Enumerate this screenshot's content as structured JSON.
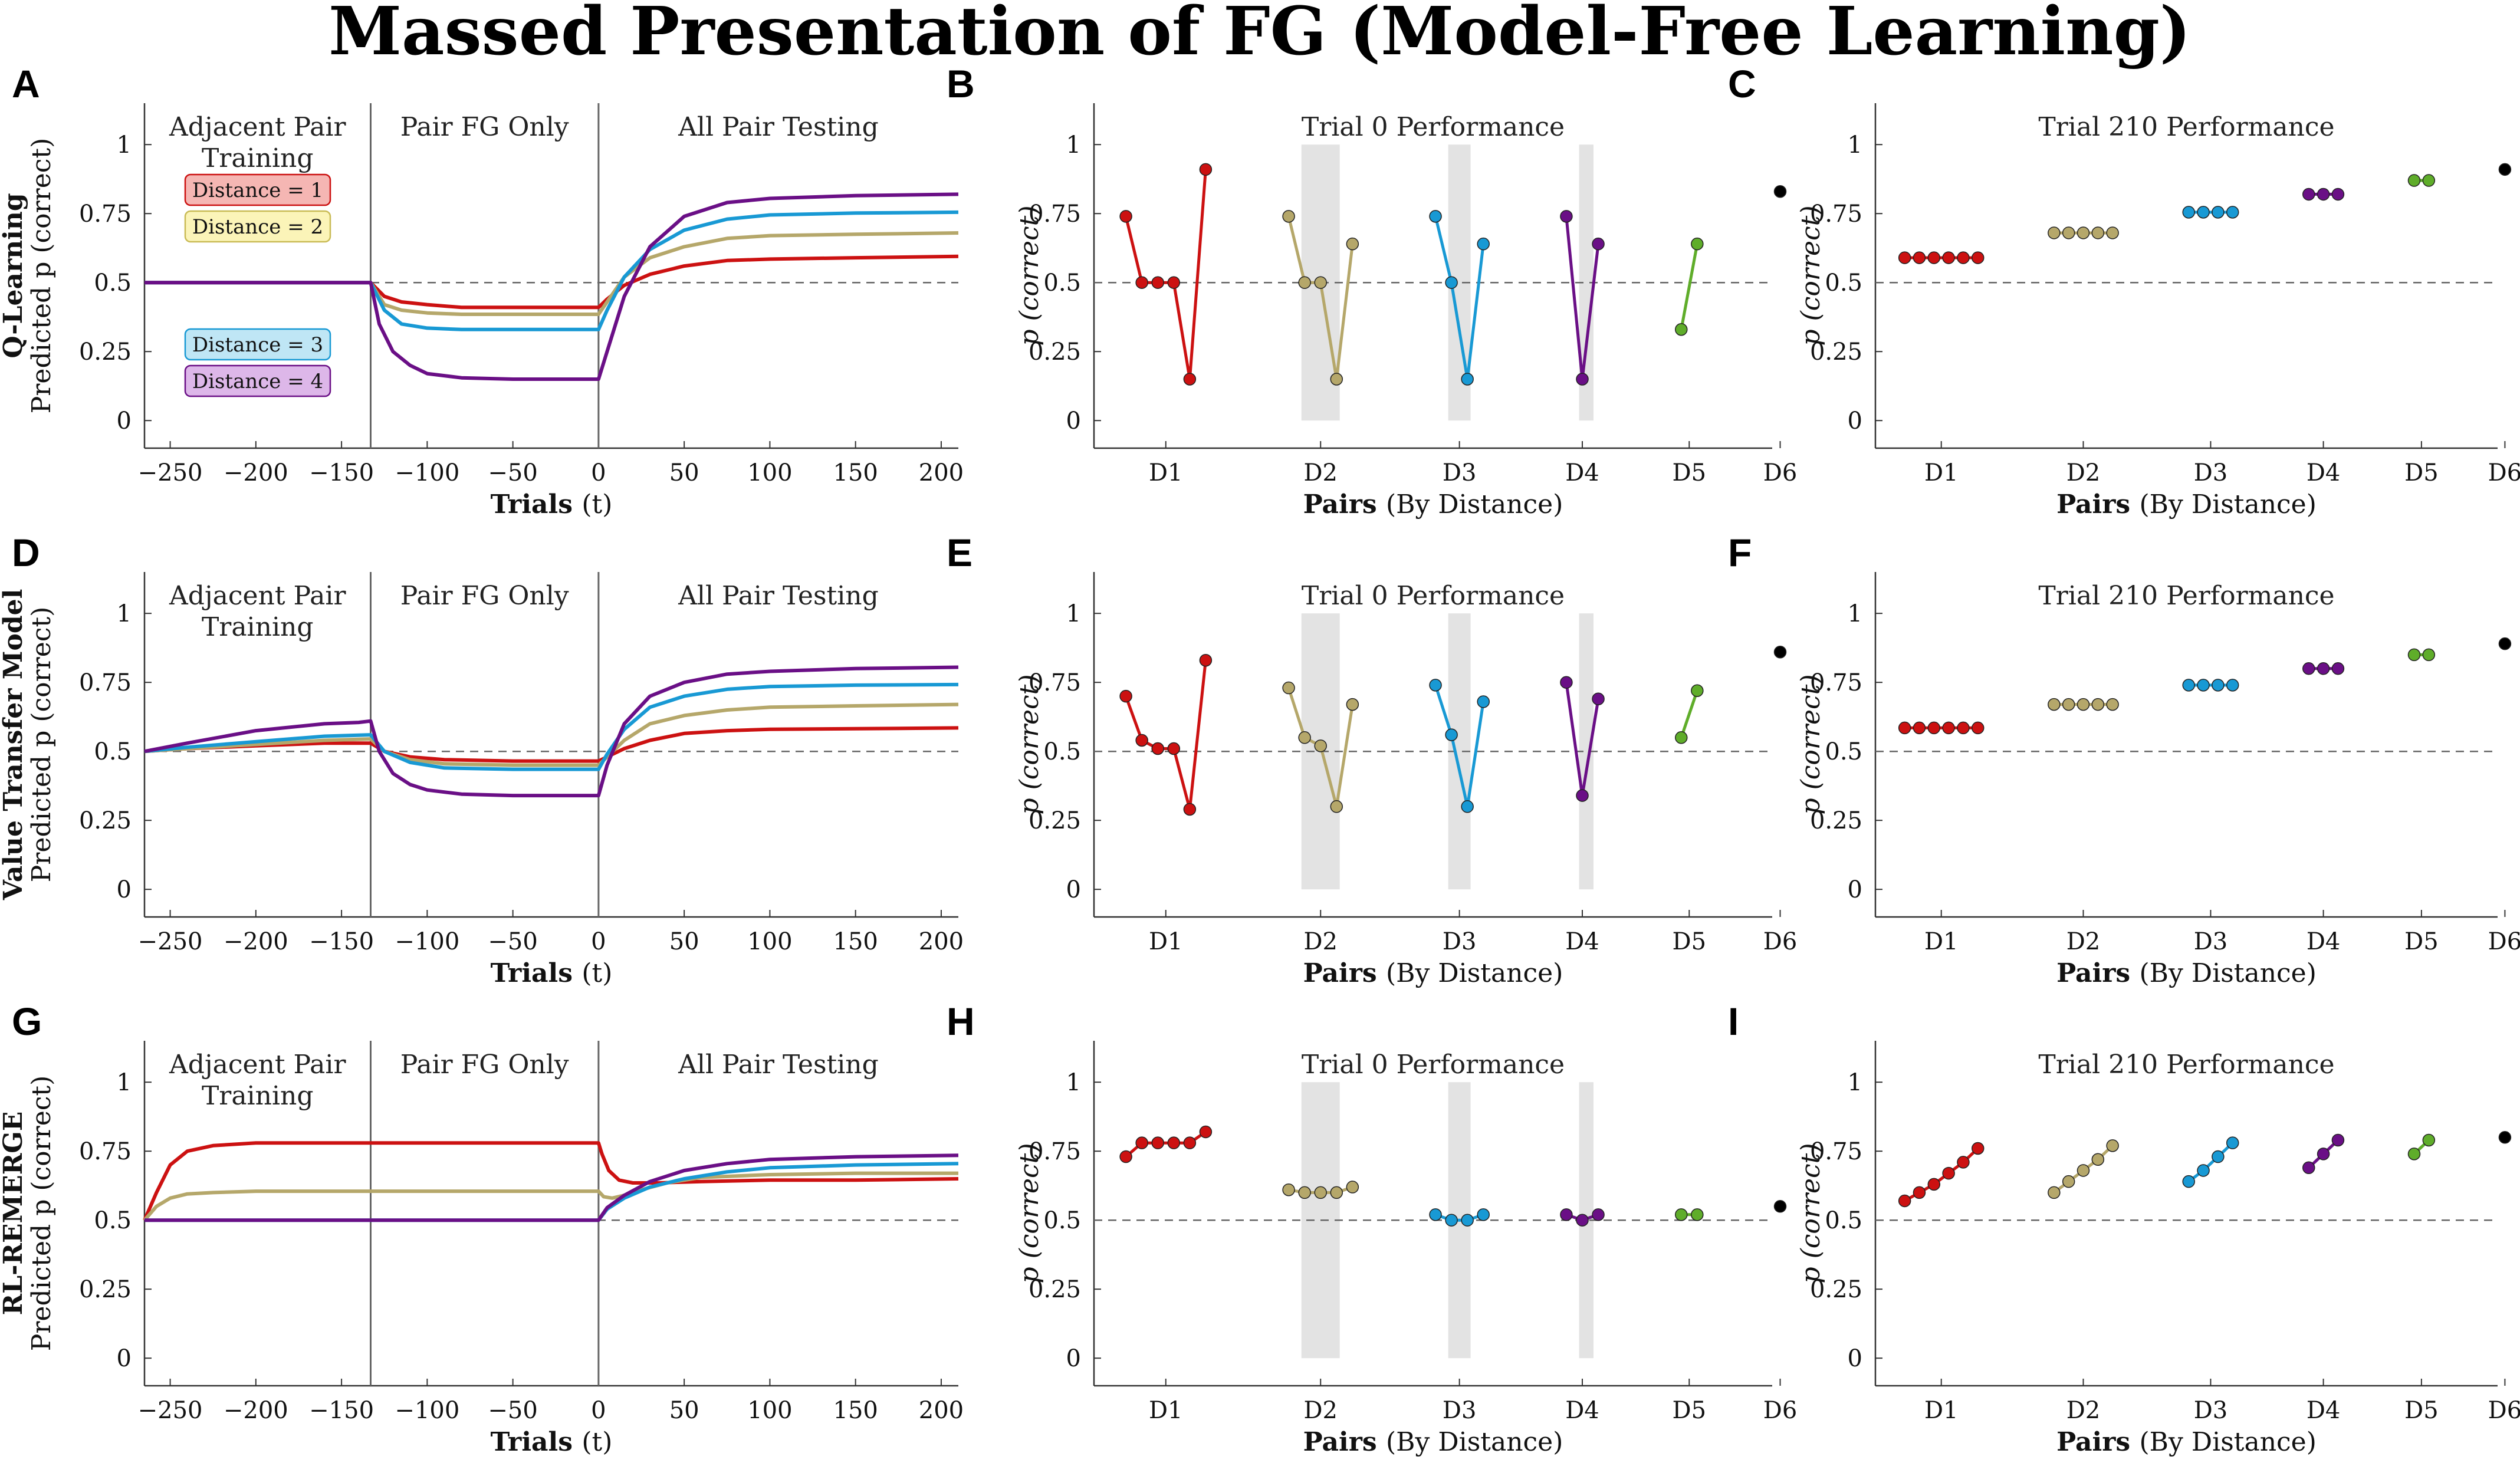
{
  "title": "Massed Presentation of FG (Model-Free Learning)",
  "colors": {
    "d1": "#cc1111",
    "d2": "#b5a76a",
    "d3": "#1899d4",
    "d4": "#6a0f86",
    "d5": "#5fad2a",
    "d6": "#000000",
    "shade": "#e3e3e3"
  },
  "legend": [
    "Distance = 1",
    "Distance = 2",
    "Distance = 3",
    "Distance = 4"
  ],
  "phases": [
    "Adjacent Pair Training",
    "Pair FG Only",
    "All Pair Testing"
  ],
  "chart_data": [
    {
      "panel": "A",
      "type": "line",
      "row_title": "Q-Learning",
      "ylabel_main": "Predicted p (correct)",
      "xlabel": "Trials (t)",
      "xlim": [
        -265,
        210
      ],
      "ylim": [
        -0.1,
        1.15
      ],
      "xticks": [
        -250,
        -200,
        -150,
        -100,
        -50,
        0,
        50,
        100,
        150,
        200
      ],
      "yticks": [
        "0",
        "0.25",
        "0.5",
        "0.75",
        "1"
      ],
      "phase_lines": [
        -133,
        0
      ],
      "reference": 0.5,
      "series": [
        {
          "name": "Distance = 1",
          "x": [
            -265,
            -133,
            -125,
            -115,
            -100,
            -80,
            -50,
            0,
            5,
            15,
            30,
            50,
            75,
            100,
            150,
            210
          ],
          "y": [
            0.5,
            0.5,
            0.45,
            0.43,
            0.42,
            0.41,
            0.41,
            0.41,
            0.44,
            0.49,
            0.53,
            0.56,
            0.58,
            0.585,
            0.59,
            0.595
          ]
        },
        {
          "name": "Distance = 2",
          "x": [
            -265,
            -133,
            -125,
            -115,
            -100,
            -80,
            -50,
            0,
            5,
            15,
            30,
            50,
            75,
            100,
            150,
            210
          ],
          "y": [
            0.5,
            0.5,
            0.42,
            0.4,
            0.39,
            0.385,
            0.385,
            0.385,
            0.43,
            0.52,
            0.59,
            0.63,
            0.66,
            0.67,
            0.675,
            0.68
          ]
        },
        {
          "name": "Distance = 3",
          "x": [
            -265,
            -133,
            -125,
            -115,
            -100,
            -80,
            -50,
            0,
            5,
            15,
            30,
            50,
            75,
            100,
            150,
            210
          ],
          "y": [
            0.5,
            0.5,
            0.4,
            0.35,
            0.335,
            0.33,
            0.33,
            0.33,
            0.4,
            0.52,
            0.62,
            0.69,
            0.73,
            0.745,
            0.752,
            0.755
          ]
        },
        {
          "name": "Distance = 4",
          "x": [
            -265,
            -133,
            -128,
            -120,
            -110,
            -100,
            -80,
            -50,
            0,
            5,
            15,
            30,
            50,
            75,
            100,
            150,
            210
          ],
          "y": [
            0.5,
            0.5,
            0.35,
            0.25,
            0.2,
            0.17,
            0.155,
            0.15,
            0.15,
            0.25,
            0.45,
            0.63,
            0.74,
            0.79,
            0.805,
            0.815,
            0.82
          ]
        }
      ]
    },
    {
      "panel": "B",
      "type": "line-dots",
      "title": "Trial 0 Performance",
      "ylabel": "p (correct)",
      "xlabel": "Pairs (By Distance)",
      "yticks": [
        "0",
        "0.25",
        "0.5",
        "0.75",
        "1"
      ],
      "categories": [
        "D1",
        "D2",
        "D3",
        "D4",
        "D5",
        "D6"
      ],
      "reference": 0.5,
      "groups": [
        {
          "name": "D1",
          "values": [
            0.74,
            0.5,
            0.5,
            0.5,
            0.15,
            0.91
          ]
        },
        {
          "name": "D2",
          "values": [
            0.74,
            0.5,
            0.5,
            0.15,
            0.64
          ]
        },
        {
          "name": "D3",
          "values": [
            0.74,
            0.5,
            0.15,
            0.64
          ]
        },
        {
          "name": "D4",
          "values": [
            0.74,
            0.15,
            0.64
          ]
        },
        {
          "name": "D5",
          "values": [
            0.33,
            0.64
          ]
        },
        {
          "name": "D6",
          "values": [
            0.83
          ]
        }
      ],
      "shaded": [
        "D2",
        "D3",
        "D4"
      ]
    },
    {
      "panel": "C",
      "type": "line-dots",
      "title": "Trial 210 Performance",
      "ylabel": "p (correct)",
      "xlabel": "Pairs (By Distance)",
      "yticks": [
        "0",
        "0.25",
        "0.5",
        "0.75",
        "1"
      ],
      "categories": [
        "D1",
        "D2",
        "D3",
        "D4",
        "D5",
        "D6"
      ],
      "reference": 0.5,
      "groups": [
        {
          "name": "D1",
          "values": [
            0.59,
            0.59,
            0.59,
            0.59,
            0.59,
            0.59
          ]
        },
        {
          "name": "D2",
          "values": [
            0.68,
            0.68,
            0.68,
            0.68,
            0.68
          ]
        },
        {
          "name": "D3",
          "values": [
            0.755,
            0.755,
            0.755,
            0.755
          ]
        },
        {
          "name": "D4",
          "values": [
            0.82,
            0.82,
            0.82
          ]
        },
        {
          "name": "D5",
          "values": [
            0.87,
            0.87
          ]
        },
        {
          "name": "D6",
          "values": [
            0.91
          ]
        }
      ],
      "shaded": []
    },
    {
      "panel": "D",
      "type": "line",
      "row_title": "Value Transfer Model",
      "ylabel_main": "Predicted p (correct)",
      "xlabel": "Trials (t)",
      "xlim": [
        -265,
        210
      ],
      "ylim": [
        -0.1,
        1.15
      ],
      "xticks": [
        -250,
        -200,
        -150,
        -100,
        -50,
        0,
        50,
        100,
        150,
        200
      ],
      "yticks": [
        "0",
        "0.25",
        "0.5",
        "0.75",
        "1"
      ],
      "phase_lines": [
        -133,
        0
      ],
      "reference": 0.5,
      "series": [
        {
          "name": "Distance = 1",
          "x": [
            -265,
            -240,
            -200,
            -160,
            -133,
            -125,
            -110,
            -90,
            -50,
            0,
            5,
            15,
            30,
            50,
            75,
            100,
            150,
            210
          ],
          "y": [
            0.5,
            0.51,
            0.52,
            0.53,
            0.53,
            0.5,
            0.48,
            0.47,
            0.465,
            0.465,
            0.48,
            0.51,
            0.54,
            0.565,
            0.575,
            0.58,
            0.582,
            0.585
          ]
        },
        {
          "name": "Distance = 2",
          "x": [
            -265,
            -240,
            -200,
            -160,
            -133,
            -125,
            -110,
            -90,
            -50,
            0,
            5,
            15,
            30,
            50,
            75,
            100,
            150,
            210
          ],
          "y": [
            0.5,
            0.51,
            0.525,
            0.54,
            0.545,
            0.5,
            0.47,
            0.455,
            0.45,
            0.45,
            0.48,
            0.54,
            0.6,
            0.63,
            0.65,
            0.66,
            0.665,
            0.67
          ]
        },
        {
          "name": "Distance = 3",
          "x": [
            -265,
            -240,
            -200,
            -160,
            -133,
            -125,
            -110,
            -90,
            -50,
            0,
            5,
            15,
            30,
            50,
            75,
            100,
            150,
            210
          ],
          "y": [
            0.5,
            0.515,
            0.535,
            0.555,
            0.56,
            0.5,
            0.46,
            0.44,
            0.435,
            0.435,
            0.49,
            0.58,
            0.66,
            0.7,
            0.725,
            0.735,
            0.74,
            0.742
          ]
        },
        {
          "name": "Distance = 4",
          "x": [
            -265,
            -240,
            -200,
            -160,
            -140,
            -133,
            -128,
            -120,
            -110,
            -100,
            -80,
            -50,
            0,
            5,
            15,
            30,
            50,
            75,
            100,
            150,
            210
          ],
          "y": [
            0.5,
            0.53,
            0.575,
            0.6,
            0.605,
            0.61,
            0.5,
            0.42,
            0.38,
            0.36,
            0.345,
            0.34,
            0.34,
            0.45,
            0.6,
            0.7,
            0.75,
            0.78,
            0.79,
            0.8,
            0.805
          ]
        }
      ]
    },
    {
      "panel": "E",
      "type": "line-dots",
      "title": "Trial 0 Performance",
      "ylabel": "p (correct)",
      "xlabel": "Pairs (By Distance)",
      "yticks": [
        "0",
        "0.25",
        "0.5",
        "0.75",
        "1"
      ],
      "categories": [
        "D1",
        "D2",
        "D3",
        "D4",
        "D5",
        "D6"
      ],
      "reference": 0.5,
      "groups": [
        {
          "name": "D1",
          "values": [
            0.7,
            0.54,
            0.51,
            0.51,
            0.29,
            0.83
          ]
        },
        {
          "name": "D2",
          "values": [
            0.73,
            0.55,
            0.52,
            0.3,
            0.67
          ]
        },
        {
          "name": "D3",
          "values": [
            0.74,
            0.56,
            0.3,
            0.68
          ]
        },
        {
          "name": "D4",
          "values": [
            0.75,
            0.34,
            0.69
          ]
        },
        {
          "name": "D5",
          "values": [
            0.55,
            0.72
          ]
        },
        {
          "name": "D6",
          "values": [
            0.86
          ]
        }
      ],
      "shaded": [
        "D2",
        "D3",
        "D4"
      ]
    },
    {
      "panel": "F",
      "type": "line-dots",
      "title": "Trial 210 Performance",
      "ylabel": "p (correct)",
      "xlabel": "Pairs (By Distance)",
      "yticks": [
        "0",
        "0.25",
        "0.5",
        "0.75",
        "1"
      ],
      "categories": [
        "D1",
        "D2",
        "D3",
        "D4",
        "D5",
        "D6"
      ],
      "reference": 0.5,
      "groups": [
        {
          "name": "D1",
          "values": [
            0.585,
            0.585,
            0.585,
            0.585,
            0.585,
            0.585
          ]
        },
        {
          "name": "D2",
          "values": [
            0.67,
            0.67,
            0.67,
            0.67,
            0.67
          ]
        },
        {
          "name": "D3",
          "values": [
            0.74,
            0.74,
            0.74,
            0.74
          ]
        },
        {
          "name": "D4",
          "values": [
            0.8,
            0.8,
            0.8
          ]
        },
        {
          "name": "D5",
          "values": [
            0.85,
            0.85
          ]
        },
        {
          "name": "D6",
          "values": [
            0.89
          ]
        }
      ],
      "shaded": []
    },
    {
      "panel": "G",
      "type": "line",
      "row_title": "RL-REMERGE",
      "ylabel_main": "Predicted p (correct)",
      "xlabel": "Trials (t)",
      "xlim": [
        -265,
        210
      ],
      "ylim": [
        -0.1,
        1.15
      ],
      "xticks": [
        -250,
        -200,
        -150,
        -100,
        -50,
        0,
        50,
        100,
        150,
        200
      ],
      "yticks": [
        "0",
        "0.25",
        "0.5",
        "0.75",
        "1"
      ],
      "phase_lines": [
        -133,
        0
      ],
      "reference": 0.5,
      "series": [
        {
          "name": "Distance = 1",
          "x": [
            -265,
            -258,
            -250,
            -240,
            -225,
            -200,
            -150,
            -133,
            -100,
            0,
            2,
            6,
            12,
            20,
            35,
            60,
            100,
            150,
            210
          ],
          "y": [
            0.5,
            0.6,
            0.7,
            0.75,
            0.77,
            0.78,
            0.78,
            0.78,
            0.78,
            0.78,
            0.74,
            0.68,
            0.645,
            0.635,
            0.635,
            0.64,
            0.645,
            0.645,
            0.65
          ]
        },
        {
          "name": "Distance = 2",
          "x": [
            -265,
            -258,
            -250,
            -240,
            -225,
            -200,
            -150,
            -133,
            -100,
            0,
            3,
            8,
            15,
            25,
            40,
            60,
            100,
            150,
            210
          ],
          "y": [
            0.5,
            0.55,
            0.58,
            0.595,
            0.6,
            0.605,
            0.605,
            0.605,
            0.605,
            0.605,
            0.585,
            0.58,
            0.59,
            0.61,
            0.635,
            0.655,
            0.665,
            0.67,
            0.67
          ]
        },
        {
          "name": "Distance = 3",
          "x": [
            -265,
            -133,
            0,
            5,
            15,
            30,
            50,
            75,
            100,
            150,
            210
          ],
          "y": [
            0.5,
            0.5,
            0.5,
            0.54,
            0.58,
            0.62,
            0.65,
            0.675,
            0.69,
            0.7,
            0.705
          ]
        },
        {
          "name": "Distance = 4",
          "x": [
            -265,
            -133,
            0,
            5,
            15,
            30,
            50,
            75,
            100,
            150,
            210
          ],
          "y": [
            0.5,
            0.5,
            0.5,
            0.545,
            0.59,
            0.64,
            0.68,
            0.705,
            0.72,
            0.73,
            0.735
          ]
        }
      ]
    },
    {
      "panel": "H",
      "type": "line-dots",
      "title": "Trial 0 Performance",
      "ylabel": "p (correct)",
      "xlabel": "Pairs (By Distance)",
      "yticks": [
        "0",
        "0.25",
        "0.5",
        "0.75",
        "1"
      ],
      "categories": [
        "D1",
        "D2",
        "D3",
        "D4",
        "D5",
        "D6"
      ],
      "reference": 0.5,
      "groups": [
        {
          "name": "D1",
          "values": [
            0.73,
            0.78,
            0.78,
            0.78,
            0.78,
            0.82
          ]
        },
        {
          "name": "D2",
          "values": [
            0.61,
            0.6,
            0.6,
            0.6,
            0.62
          ]
        },
        {
          "name": "D3",
          "values": [
            0.52,
            0.5,
            0.5,
            0.52
          ]
        },
        {
          "name": "D4",
          "values": [
            0.52,
            0.5,
            0.52
          ]
        },
        {
          "name": "D5",
          "values": [
            0.52,
            0.52
          ]
        },
        {
          "name": "D6",
          "values": [
            0.55
          ]
        }
      ],
      "shaded": [
        "D2",
        "D3",
        "D4"
      ]
    },
    {
      "panel": "I",
      "type": "line-dots",
      "title": "Trial 210 Performance",
      "ylabel": "p (correct)",
      "xlabel": "Pairs (By Distance)",
      "yticks": [
        "0",
        "0.25",
        "0.5",
        "0.75",
        "1"
      ],
      "categories": [
        "D1",
        "D2",
        "D3",
        "D4",
        "D5",
        "D6"
      ],
      "reference": 0.5,
      "groups": [
        {
          "name": "D1",
          "values": [
            0.57,
            0.6,
            0.63,
            0.67,
            0.71,
            0.76
          ]
        },
        {
          "name": "D2",
          "values": [
            0.6,
            0.64,
            0.68,
            0.72,
            0.77
          ]
        },
        {
          "name": "D3",
          "values": [
            0.64,
            0.68,
            0.73,
            0.78
          ]
        },
        {
          "name": "D4",
          "values": [
            0.69,
            0.74,
            0.79
          ]
        },
        {
          "name": "D5",
          "values": [
            0.74,
            0.79
          ]
        },
        {
          "name": "D6",
          "values": [
            0.8
          ]
        }
      ],
      "shaded": []
    }
  ]
}
